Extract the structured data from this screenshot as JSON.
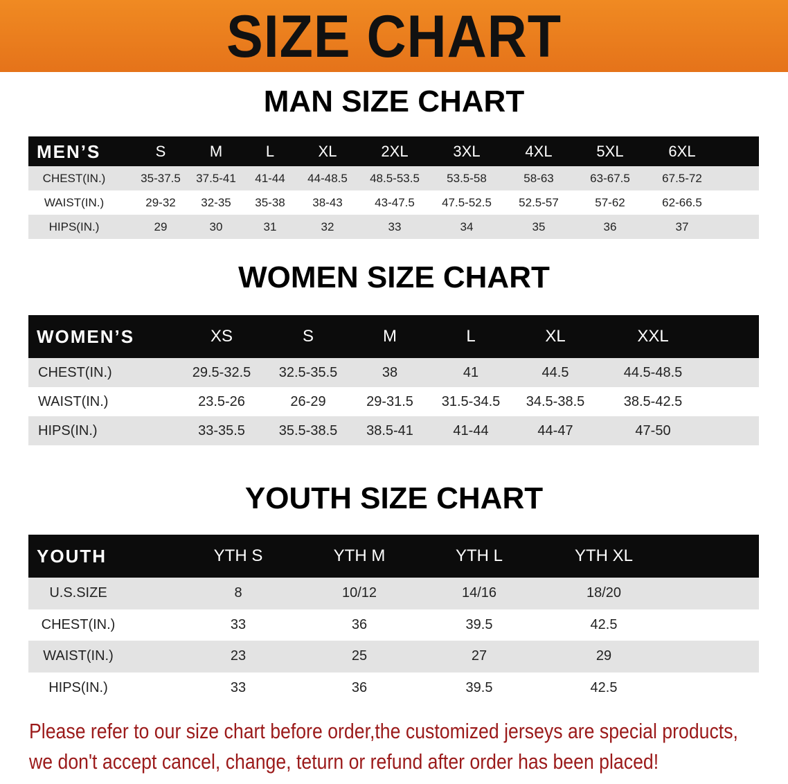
{
  "banner": {
    "title": "SIZE CHART"
  },
  "men": {
    "title": "MAN SIZE CHART",
    "header_label": "MEN’S",
    "sizes": [
      "S",
      "M",
      "L",
      "XL",
      "2XL",
      "3XL",
      "4XL",
      "5XL",
      "6XL"
    ],
    "rows": [
      {
        "label": "CHEST(IN.)",
        "values": [
          "35-37.5",
          "37.5-41",
          "41-44",
          "44-48.5",
          "48.5-53.5",
          "53.5-58",
          "58-63",
          "63-67.5",
          "67.5-72"
        ]
      },
      {
        "label": "WAIST(IN.)",
        "values": [
          "29-32",
          "32-35",
          "35-38",
          "38-43",
          "43-47.5",
          "47.5-52.5",
          "52.5-57",
          "57-62",
          "62-66.5"
        ]
      },
      {
        "label": "HIPS(IN.)",
        "values": [
          "29",
          "30",
          "31",
          "32",
          "33",
          "34",
          "35",
          "36",
          "37"
        ]
      }
    ]
  },
  "women": {
    "title": "WOMEN SIZE CHART",
    "header_label": "WOMEN’S",
    "sizes": [
      "XS",
      "S",
      "M",
      "L",
      "XL",
      "XXL"
    ],
    "rows": [
      {
        "label": "CHEST(IN.)",
        "values": [
          "29.5-32.5",
          "32.5-35.5",
          "38",
          "41",
          "44.5",
          "44.5-48.5"
        ]
      },
      {
        "label": "WAIST(IN.)",
        "values": [
          "23.5-26",
          "26-29",
          "29-31.5",
          "31.5-34.5",
          "34.5-38.5",
          "38.5-42.5"
        ]
      },
      {
        "label": "HIPS(IN.)",
        "values": [
          "33-35.5",
          "35.5-38.5",
          "38.5-41",
          "41-44",
          "44-47",
          "47-50"
        ]
      }
    ]
  },
  "youth": {
    "title": "YOUTH SIZE CHART",
    "header_label": "YOUTH",
    "sizes": [
      "YTH S",
      "YTH M",
      "YTH L",
      "YTH XL"
    ],
    "rows": [
      {
        "label": "U.S.SIZE",
        "values": [
          "8",
          "10/12",
          "14/16",
          "18/20"
        ]
      },
      {
        "label": "CHEST(IN.)",
        "values": [
          "33",
          "36",
          "39.5",
          "42.5"
        ]
      },
      {
        "label": "WAIST(IN.)",
        "values": [
          "23",
          "25",
          "27",
          "29"
        ]
      },
      {
        "label": "HIPS(IN.)",
        "values": [
          "33",
          "36",
          "39.5",
          "42.5"
        ]
      }
    ]
  },
  "notice": {
    "line1": "Please refer to our size chart before order,the customized jerseys are special products,",
    "line2": "we don't accept cancel, change, teturn or refund after order has been placed!"
  },
  "colors": {
    "banner": "#e8781a",
    "header_bg": "#0c0c0c",
    "row_gray": "#e3e3e3",
    "notice": "#9b1a1a"
  }
}
